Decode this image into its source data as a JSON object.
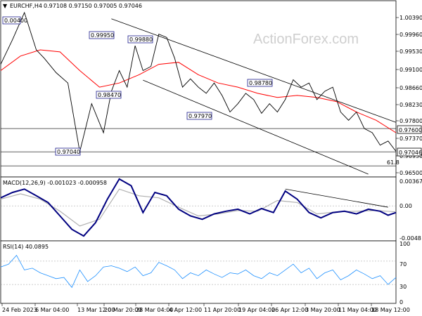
{
  "header": {
    "symbol": "EURCHF,H4",
    "ohlc": "0.97108 0.97150 0.97005 0.97046"
  },
  "watermark": "ActionForex.com",
  "colors": {
    "price": "#000000",
    "ma": "#ff0000",
    "channel": "#000000",
    "macd": "#000080",
    "signal": "#b0b0b0",
    "rsi": "#1e90ff",
    "annotation": "#1c1c8c"
  },
  "chart_data": [
    {
      "type": "line",
      "panel": "price",
      "title": "EURCHF,H4",
      "ylim": [
        0.965,
        1.005
      ],
      "y_ticks": [
        "1.00390",
        "0.99960",
        "0.99530",
        "0.99100",
        "0.98660",
        "0.98230",
        "0.97800",
        "0.97370",
        "0.96930",
        "0.96500"
      ],
      "x_ticks": [
        "24 Feb 2023",
        "6 Mar 04:00",
        "13 Mar 12:00",
        "20 Mar 20:00",
        "28 Mar 04:00",
        "4 Apr 12:00",
        "11 Apr 20:00",
        "19 Apr 04:00",
        "26 Apr 12:00",
        "3 May 20:00",
        "11 May 04:00",
        "18 May 12:00"
      ],
      "series": [
        {
          "x": [
            0,
            3,
            6,
            9,
            11,
            14,
            17,
            20,
            23,
            26,
            28,
            30,
            32,
            34,
            36,
            38,
            40,
            42,
            44,
            46,
            48,
            50,
            52,
            54,
            56,
            58,
            60,
            62,
            64,
            66,
            68,
            70,
            72,
            74,
            76,
            78,
            80,
            82,
            84,
            86,
            88,
            90,
            92,
            94,
            96,
            98,
            100
          ],
          "values": [
            0.9915,
            0.9975,
            1.004,
            0.995,
            0.993,
            0.9895,
            0.987,
            0.9704,
            0.982,
            0.975,
            0.985,
            0.99,
            0.986,
            0.996,
            0.99,
            0.991,
            0.9988,
            0.998,
            0.993,
            0.986,
            0.988,
            0.986,
            0.9845,
            0.987,
            0.984,
            0.98,
            0.982,
            0.9845,
            0.983,
            0.9797,
            0.982,
            0.98,
            0.983,
            0.9878,
            0.986,
            0.987,
            0.983,
            0.985,
            0.986,
            0.98,
            0.978,
            0.98,
            0.976,
            0.975,
            0.972,
            0.973,
            0.9705
          ]
        },
        {
          "x": [
            0,
            5,
            10,
            15,
            20,
            25,
            30,
            35,
            40,
            45,
            50,
            55,
            60,
            65,
            70,
            75,
            80,
            85,
            90,
            95,
            100
          ],
          "values": [
            0.99,
            0.9935,
            0.995,
            0.9945,
            0.99,
            0.986,
            0.987,
            0.989,
            0.9915,
            0.992,
            0.989,
            0.987,
            0.986,
            0.9845,
            0.9835,
            0.984,
            0.9835,
            0.9825,
            0.98,
            0.978,
            0.975
          ]
        }
      ],
      "channel_lines": [
        {
          "x": [
            28,
            100
          ],
          "values": [
            1.0025,
            0.9775
          ]
        },
        {
          "x": [
            36,
            93
          ],
          "values": [
            0.9877,
            0.965
          ]
        }
      ],
      "annotations": [
        "0.00400",
        "0.99950",
        "0.99880",
        "0.98470",
        "0.98780",
        "0.97970",
        "0.97040",
        "61.8"
      ],
      "price_tags": [
        "0.97600",
        "0.97046"
      ],
      "level_lines": [
        0.976,
        0.9704,
        0.967
      ]
    },
    {
      "type": "line",
      "panel": "macd",
      "title": "MACD(12,26,9) -0.001023 -0.000958",
      "ylim": [
        -0.0048,
        0.003679
      ],
      "y_ticks": [
        "0.003679",
        "0.00",
        "-0.0048"
      ],
      "series": [
        {
          "x": [
            0,
            3,
            6,
            9,
            12,
            15,
            18,
            21,
            24,
            27,
            30,
            33,
            36,
            39,
            42,
            45,
            48,
            51,
            54,
            57,
            60,
            63,
            66,
            69,
            72,
            75,
            78,
            81,
            84,
            87,
            90,
            93,
            96,
            98,
            100
          ],
          "values": [
            0.0012,
            0.002,
            0.0025,
            0.0015,
            0.0005,
            -0.0015,
            -0.0035,
            -0.0045,
            -0.0025,
            0.001,
            0.004,
            0.003,
            -0.001,
            0.002,
            0.0015,
            -0.0005,
            -0.0015,
            -0.002,
            -0.0012,
            -0.0008,
            -0.0005,
            -0.0012,
            -0.0004,
            -0.001,
            0.0022,
            0.001,
            -0.001,
            -0.0018,
            -0.001,
            -0.0008,
            -0.0012,
            -0.0005,
            -0.0008,
            -0.0014,
            -0.001
          ]
        },
        {
          "x": [
            0,
            5,
            10,
            15,
            20,
            25,
            30,
            35,
            40,
            45,
            50,
            55,
            60,
            65,
            70,
            75,
            80,
            85,
            90,
            95,
            100
          ],
          "values": [
            0.001,
            0.0018,
            0.001,
            -0.0008,
            -0.003,
            -0.002,
            0.0025,
            0.0015,
            0.0012,
            -0.0002,
            -0.0015,
            -0.0012,
            -0.0007,
            -0.0008,
            0.0008,
            0.0005,
            -0.0012,
            -0.0009,
            -0.0008,
            -0.0007,
            -0.0009
          ]
        }
      ],
      "trend_line": {
        "x": [
          72,
          98
        ],
        "values": [
          0.0025,
          -0.0002
        ]
      }
    },
    {
      "type": "line",
      "panel": "rsi",
      "title": "RSI(14) 40.0895",
      "ylim": [
        0,
        100
      ],
      "y_ticks": [
        "100",
        "70",
        "30",
        "0"
      ],
      "series": [
        {
          "x": [
            0,
            2,
            4,
            6,
            8,
            10,
            12,
            14,
            16,
            18,
            20,
            22,
            24,
            26,
            28,
            30,
            32,
            34,
            36,
            38,
            40,
            42,
            44,
            46,
            48,
            50,
            52,
            54,
            56,
            58,
            60,
            62,
            64,
            66,
            68,
            70,
            72,
            74,
            76,
            78,
            80,
            82,
            84,
            86,
            88,
            90,
            92,
            94,
            96,
            98,
            100
          ],
          "values": [
            60,
            65,
            80,
            55,
            58,
            50,
            45,
            40,
            42,
            25,
            55,
            35,
            45,
            60,
            62,
            58,
            52,
            60,
            45,
            50,
            68,
            62,
            55,
            40,
            50,
            45,
            55,
            48,
            42,
            50,
            48,
            55,
            45,
            40,
            50,
            45,
            55,
            65,
            50,
            58,
            40,
            50,
            55,
            38,
            45,
            55,
            48,
            40,
            45,
            30,
            42
          ]
        }
      ],
      "levels": [
        70,
        30
      ]
    }
  ]
}
